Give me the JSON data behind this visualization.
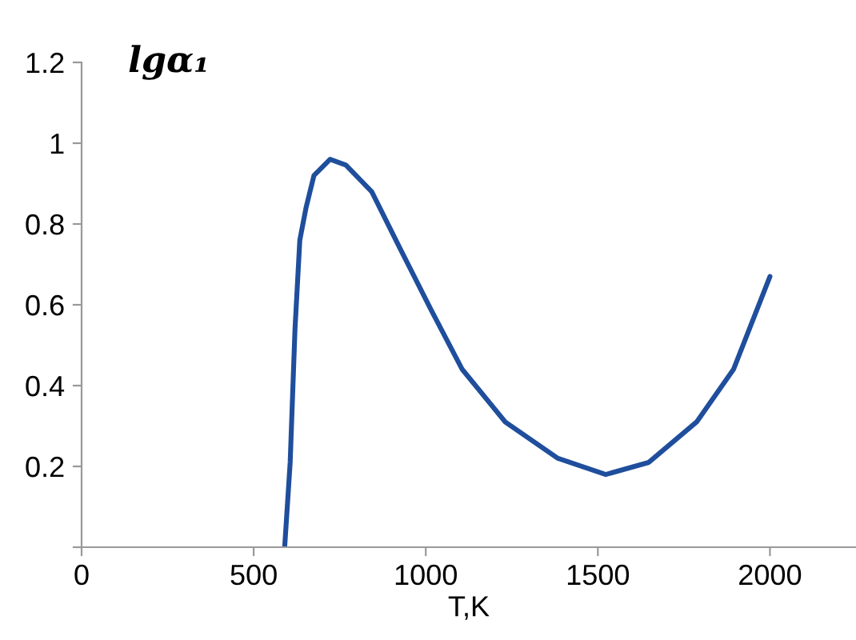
{
  "chart_data": {
    "type": "line",
    "xlabel": "T,K",
    "ylabel": "lgα₁",
    "x": [
      590,
      606,
      620,
      634,
      652,
      675,
      722,
      768,
      843,
      925,
      1014,
      1106,
      1231,
      1384,
      1523,
      1648,
      1787,
      1894,
      2000
    ],
    "series": [
      {
        "color": "#1f4e9c",
        "values": [
          0,
          0.21,
          0.54,
          0.76,
          0.84,
          0.92,
          0.96,
          0.946,
          0.88,
          0.74,
          0.59,
          0.44,
          0.31,
          0.22,
          0.18,
          0.21,
          0.31,
          0.44,
          0.67
        ]
      }
    ],
    "xlim": [
      0,
      2250
    ],
    "xticks": [
      0,
      500,
      1000,
      1500,
      2000
    ],
    "ylim": [
      0,
      1.2
    ],
    "yticks": [
      {
        "value": 0,
        "label": null
      },
      0.2,
      0.4,
      0.6,
      0.8,
      1,
      1.2
    ],
    "grid": false,
    "legend": false,
    "marker": "none",
    "line_style": "solid"
  }
}
